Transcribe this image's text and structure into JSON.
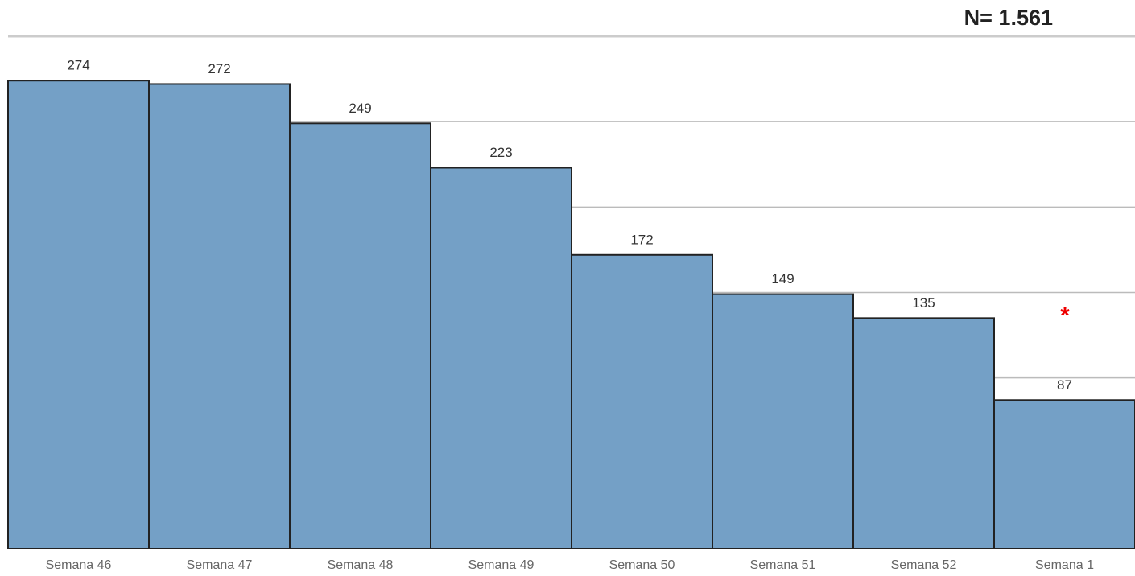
{
  "chart_data": {
    "type": "bar",
    "annotations": [
      "N= 1.561",
      "*"
    ],
    "categories": [
      "Semana 46",
      "Semana 47",
      "Semana 48",
      "Semana 49",
      "Semana 50",
      "Semana 51",
      "Semana 52",
      "Semana 1"
    ],
    "values": [
      274,
      272,
      249,
      223,
      172,
      149,
      135,
      87
    ],
    "color": "#74a0c6",
    "ylim": [
      0,
      300
    ],
    "yticks": [
      0,
      50,
      100,
      150,
      200,
      250,
      300
    ],
    "grid": true
  }
}
